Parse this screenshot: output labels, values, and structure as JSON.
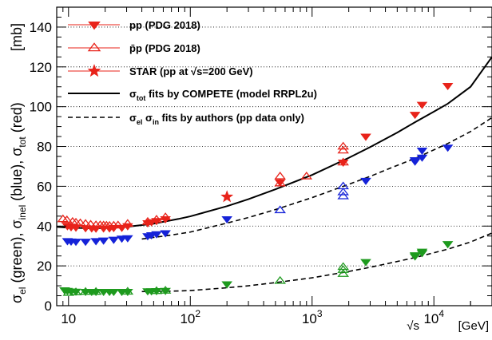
{
  "chart_data": {
    "type": "scatter",
    "title": "",
    "xlabel": "√s",
    "xunit": "[GeV]",
    "ylabel_unit": "[mb]",
    "ylabel_main": "σ",
    "ylabel_parts": [
      {
        "text": "σ",
        "sub": "el",
        "tail": " (green), "
      },
      {
        "text": "σ",
        "sub": "inel",
        "tail": " (blue), "
      },
      {
        "text": "σ",
        "sub": "tot",
        "tail": " (red)"
      }
    ],
    "x_scale": "log",
    "xlim": [
      8,
      30000
    ],
    "ylim": [
      0,
      150
    ],
    "x_ticks": [
      10,
      100,
      1000,
      10000
    ],
    "x_tick_labels": [
      {
        "base": "10",
        "exp": ""
      },
      {
        "base": "10",
        "exp": "2"
      },
      {
        "base": "10",
        "exp": "3"
      },
      {
        "base": "10",
        "exp": "4"
      }
    ],
    "y_ticks": [
      0,
      20,
      40,
      60,
      80,
      100,
      120,
      140
    ],
    "grid": "horizontal-dotted",
    "legend": {
      "placement": "top-left",
      "entries": [
        {
          "marker": "filled-down-triangle",
          "color": "#e8231a",
          "label": "pp  (PDG 2018)"
        },
        {
          "marker": "open-up-triangle",
          "color": "#e8231a",
          "label": "p̄p  (PDG 2018)"
        },
        {
          "marker": "star",
          "color": "#e8231a",
          "label": "STAR  (pp at √s=200 GeV)"
        },
        {
          "marker": "solid-line",
          "color": "#000000",
          "label_parts": [
            {
              "t": "σ"
            },
            {
              "t": "tot",
              "sub": true
            },
            {
              "t": " fits by COMPETE (model RRPL2u)"
            }
          ]
        },
        {
          "marker": "dashed-line",
          "color": "#000000",
          "label_parts": [
            {
              "t": "σ"
            },
            {
              "t": "el",
              "sub": true
            },
            {
              "t": "  σ"
            },
            {
              "t": "in",
              "sub": true
            },
            {
              "t": "  fits by authors (pp data only)"
            }
          ]
        }
      ]
    },
    "colors": {
      "total": "#e8231a",
      "inelastic": "#1522d8",
      "elastic": "#1e9a1e"
    },
    "series": [
      {
        "name": "pp (PDG 2018)",
        "quantity": "total",
        "marker": "filled-down-triangle",
        "color": "#e8231a",
        "points": [
          [
            9.8,
            40.0
          ],
          [
            10.5,
            39.5
          ],
          [
            11.5,
            39.3
          ],
          [
            13.8,
            39.0
          ],
          [
            15.5,
            38.9
          ],
          [
            16.8,
            38.8
          ],
          [
            19.4,
            38.9
          ],
          [
            21.7,
            38.9
          ],
          [
            23.5,
            39.1
          ],
          [
            27.4,
            39.2
          ],
          [
            30.6,
            40.0
          ],
          [
            44.7,
            41.5
          ],
          [
            48,
            42
          ],
          [
            52.8,
            42.6
          ],
          [
            62.5,
            43.5
          ],
          [
            546,
            62
          ],
          [
            1800,
            72
          ],
          [
            2760,
            85
          ],
          [
            7000,
            96
          ],
          [
            8000,
            101
          ],
          [
            13000,
            110.5
          ]
        ]
      },
      {
        "name": "p̄p (PDG 2018)",
        "quantity": "total",
        "marker": "open-up-triangle",
        "color": "#e8231a",
        "points": [
          [
            9,
            43.5
          ],
          [
            9.7,
            43
          ],
          [
            10.8,
            42.2
          ],
          [
            11.5,
            41.8
          ],
          [
            12.5,
            41.5
          ],
          [
            13.8,
            41.2
          ],
          [
            15.2,
            40.8
          ],
          [
            16.8,
            40.5
          ],
          [
            18.2,
            40.5
          ],
          [
            19.4,
            40.4
          ],
          [
            20.5,
            40.3
          ],
          [
            21.7,
            40.2
          ],
          [
            23.5,
            40.3
          ],
          [
            25.5,
            40.4
          ],
          [
            30.6,
            41.2
          ],
          [
            44.7,
            42.2
          ],
          [
            52.8,
            43.3
          ],
          [
            62.5,
            44.5
          ],
          [
            546,
            61.5
          ],
          [
            546,
            65
          ],
          [
            900,
            65
          ],
          [
            1800,
            72
          ],
          [
            1800,
            78
          ],
          [
            1800,
            80
          ]
        ]
      },
      {
        "name": "STAR (pp at √s=200 GeV)",
        "quantity": "total",
        "marker": "star",
        "color": "#e8231a",
        "points": [
          [
            200,
            54.7
          ]
        ]
      },
      {
        "name": "pp (PDG 2018)",
        "quantity": "inelastic",
        "marker": "filled-down-triangle",
        "color": "#1522d8",
        "points": [
          [
            9.8,
            32.5
          ],
          [
            10.5,
            32.3
          ],
          [
            11.5,
            32.2
          ],
          [
            13.8,
            32.2
          ],
          [
            16.8,
            32.5
          ],
          [
            19.4,
            32.8
          ],
          [
            23.5,
            33.2
          ],
          [
            27.4,
            33.8
          ],
          [
            30.6,
            34
          ],
          [
            44.7,
            35
          ],
          [
            48,
            35.5
          ],
          [
            52.8,
            36
          ],
          [
            62.5,
            36.5
          ],
          [
            200,
            43.5
          ],
          [
            2760,
            62.8
          ],
          [
            7000,
            72.5
          ],
          [
            7000,
            73.2
          ],
          [
            8000,
            74.5
          ],
          [
            8000,
            78
          ],
          [
            13000,
            79.5
          ]
        ]
      },
      {
        "name": "p̄p (PDG 2018)",
        "quantity": "inelastic",
        "marker": "open-up-triangle",
        "color": "#1522d8",
        "points": [
          [
            546,
            48
          ],
          [
            1800,
            55
          ],
          [
            1800,
            57
          ],
          [
            1800,
            60
          ]
        ]
      },
      {
        "name": "pp (PDG 2018)",
        "quantity": "elastic",
        "marker": "filled-down-triangle",
        "color": "#1e9a1e",
        "points": [
          [
            9.3,
            7.8
          ],
          [
            9.8,
            7.5
          ],
          [
            10.5,
            7.2
          ],
          [
            11.5,
            7.1
          ],
          [
            13.8,
            7.0
          ],
          [
            15.5,
            7.0
          ],
          [
            16.8,
            7.0
          ],
          [
            19.4,
            7.0
          ],
          [
            21.7,
            7.0
          ],
          [
            23.5,
            7.0
          ],
          [
            27.4,
            7.0
          ],
          [
            30.6,
            7.0
          ],
          [
            44.7,
            7.3
          ],
          [
            48,
            7.3
          ],
          [
            52.8,
            7.4
          ],
          [
            62.5,
            7.5
          ],
          [
            200,
            10.8
          ],
          [
            2760,
            22
          ],
          [
            7000,
            24.8
          ],
          [
            7000,
            25.4
          ],
          [
            8000,
            26.5
          ],
          [
            8000,
            27.2
          ],
          [
            13000,
            31
          ]
        ]
      },
      {
        "name": "p̄p (PDG 2018)",
        "quantity": "elastic",
        "marker": "open-up-triangle",
        "color": "#1e9a1e",
        "points": [
          [
            10,
            6.5
          ],
          [
            11.5,
            6.8
          ],
          [
            13.8,
            7.0
          ],
          [
            16.8,
            7.0
          ],
          [
            30.6,
            7.1
          ],
          [
            52.8,
            7.4
          ],
          [
            62.5,
            7.6
          ],
          [
            546,
            12.5
          ],
          [
            1800,
            16
          ],
          [
            1800,
            18
          ],
          [
            1800,
            19.5
          ]
        ]
      },
      {
        "name": "σtot fits by COMPETE (model RRPL2u)",
        "quantity": "total",
        "style": "solid",
        "color": "#000000",
        "points": [
          [
            8,
            39.6
          ],
          [
            10,
            39.2
          ],
          [
            15,
            38.9
          ],
          [
            20,
            39.0
          ],
          [
            30,
            39.6
          ],
          [
            50,
            41.2
          ],
          [
            80,
            43.6
          ],
          [
            100,
            44.9
          ],
          [
            200,
            50.0
          ],
          [
            300,
            53.5
          ],
          [
            500,
            58.5
          ],
          [
            1000,
            65.7
          ],
          [
            2000,
            74.3
          ],
          [
            3000,
            79.7
          ],
          [
            5000,
            87.0
          ],
          [
            7000,
            92.2
          ],
          [
            10000,
            97.5
          ],
          [
            13000,
            101.5
          ],
          [
            20000,
            110.0
          ],
          [
            30000,
            125.0
          ]
        ]
      },
      {
        "name": "σin fit by authors (pp data only)",
        "quantity": "inelastic",
        "style": "dashed",
        "color": "#000000",
        "points": [
          [
            40,
            33.5
          ],
          [
            50,
            34.3
          ],
          [
            70,
            35.5
          ],
          [
            100,
            37.0
          ],
          [
            200,
            41.5
          ],
          [
            300,
            44.3
          ],
          [
            500,
            48.3
          ],
          [
            1000,
            54.3
          ],
          [
            2000,
            61.0
          ],
          [
            3000,
            65.0
          ],
          [
            5000,
            70.5
          ],
          [
            7000,
            74.0
          ],
          [
            10000,
            78.3
          ],
          [
            13000,
            81.5
          ],
          [
            20000,
            87.5
          ],
          [
            30000,
            94.5
          ]
        ]
      },
      {
        "name": "σel fit by authors (pp data only)",
        "quantity": "elastic",
        "style": "dashed",
        "color": "#000000",
        "points": [
          [
            40,
            7.1
          ],
          [
            60,
            7.2
          ],
          [
            80,
            7.4
          ],
          [
            100,
            7.6
          ],
          [
            200,
            9.0
          ],
          [
            300,
            10.0
          ],
          [
            500,
            11.6
          ],
          [
            1000,
            14.0
          ],
          [
            2000,
            17.2
          ],
          [
            3000,
            19.3
          ],
          [
            5000,
            22.2
          ],
          [
            7000,
            24.2
          ],
          [
            10000,
            26.6
          ],
          [
            13000,
            28.4
          ],
          [
            20000,
            32.0
          ],
          [
            30000,
            36.5
          ]
        ]
      }
    ]
  }
}
